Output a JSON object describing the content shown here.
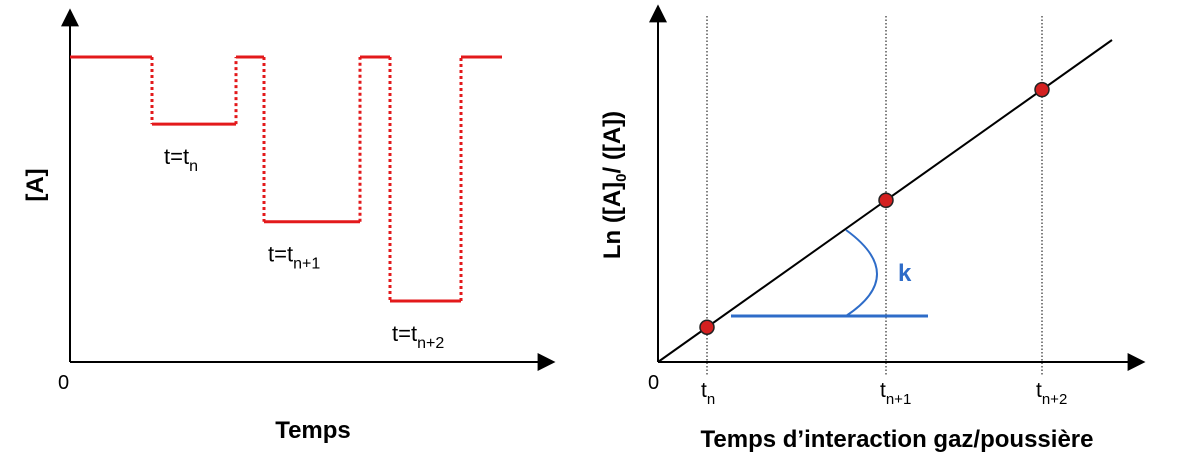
{
  "chart_data": [
    {
      "type": "line",
      "xlabel": "Temps",
      "ylabel": "[A]",
      "origin_label": "0",
      "series_color": "#e3191b",
      "levels": [
        {
          "label": "t=t",
          "sub": "n",
          "depth": 0.22
        },
        {
          "label": "t=t",
          "sub": "n+1",
          "depth": 0.54
        },
        {
          "label": "t=t",
          "sub": "n+2",
          "depth": 0.8
        }
      ]
    },
    {
      "type": "scatter",
      "xlabel": "Temps d’interaction gaz/poussière",
      "ylabel_parts": [
        "Ln ([A]",
        "0",
        "/ ([A])"
      ],
      "origin_label": "0",
      "slope_label": "k",
      "slope_color": "#2e6cc8",
      "point_color": "#d42020",
      "ticks": [
        {
          "base": "t",
          "sub": "n"
        },
        {
          "base": "t",
          "sub": "n+1"
        },
        {
          "base": "t",
          "sub": "n+2"
        }
      ]
    }
  ]
}
